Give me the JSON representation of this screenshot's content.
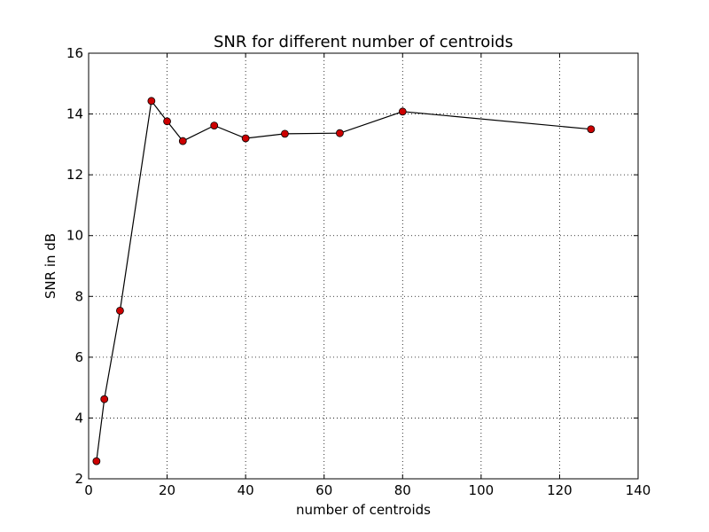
{
  "chart_data": {
    "type": "line",
    "title": "SNR for different number of centroids",
    "xlabel": "number of centroids",
    "ylabel": "SNR in dB",
    "xlim": [
      0,
      140
    ],
    "ylim": [
      2,
      16
    ],
    "xticks": [
      0,
      20,
      40,
      60,
      80,
      100,
      120,
      140
    ],
    "yticks": [
      2,
      4,
      6,
      8,
      10,
      12,
      14,
      16
    ],
    "grid": true,
    "grid_style": "dotted",
    "line_color": "#000000",
    "marker_face_color": "#cc0000",
    "marker_edge_color": "#000000",
    "series": [
      {
        "x": [
          2,
          4,
          8,
          16,
          20,
          24,
          32,
          40,
          50,
          64,
          80,
          128
        ],
        "values": [
          2.58,
          4.62,
          7.53,
          14.43,
          13.76,
          13.11,
          13.62,
          13.2,
          13.35,
          13.37,
          14.08,
          13.5
        ]
      }
    ]
  }
}
